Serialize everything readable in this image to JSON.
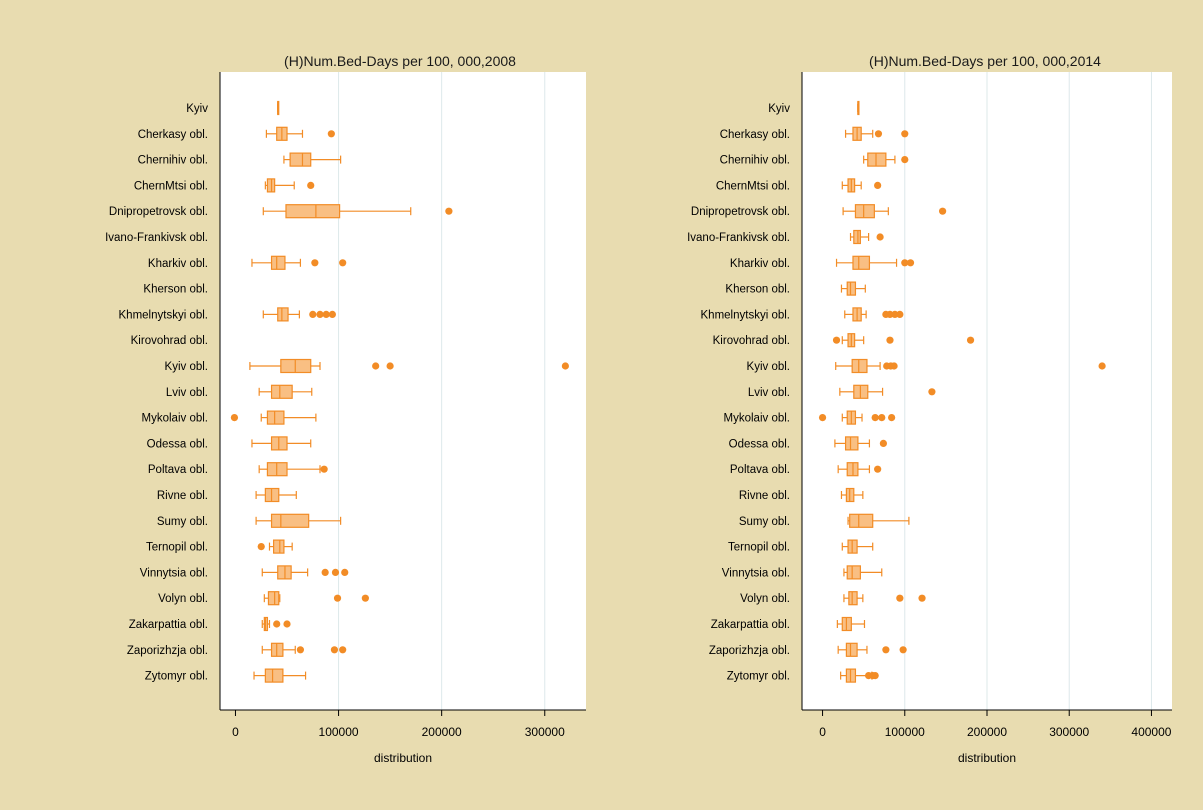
{
  "colors": {
    "background": "#e8dcb0",
    "plot_bg": "#ffffff",
    "box_fill": "#f9bf83",
    "box_stroke": "#f28c26",
    "grid": "#dde8ea"
  },
  "chart_data": [
    {
      "type": "boxplot",
      "title": "(H)Num.Bed-Days per 100, 000,2008",
      "xlabel": "distribution",
      "xlim": [
        -15000,
        340000
      ],
      "xticks": [
        0,
        100000,
        200000,
        300000
      ],
      "xtick_labels": [
        "0",
        "100000",
        "200000",
        "300000"
      ],
      "grid": "vertical",
      "categories": [
        "Kyiv",
        "Cherkasy obl.",
        "Chernihiv obl.",
        "ChernMtsi obl.",
        "Dnipropetrovsk obl.",
        "Ivano-Frankivsk obl.",
        "Kharkiv obl.",
        "Kherson obl.",
        "Khmelnytskyi obl.",
        "Kirovohrad obl.",
        "Kyiv obl.",
        "Lviv obl.",
        "Mykolaiv obl.",
        "Odessa obl.",
        "Poltava obl.",
        "Rivne obl.",
        "Sumy obl.",
        "Ternopil obl.",
        "Vinnytsia obl.",
        "Volyn obl.",
        "Zakarpattia obl.",
        "Zaporizhzja obl.",
        "Zytomyr obl."
      ],
      "boxes": [
        {
          "whisker_low": 41000,
          "q1": 41000,
          "median": 41000,
          "q3": 41000,
          "whisker_high": 41000,
          "outliers": []
        },
        {
          "whisker_low": 30000,
          "q1": 40000,
          "median": 45000,
          "q3": 50000,
          "whisker_high": 65000,
          "outliers": [
            93000
          ]
        },
        {
          "whisker_low": 47000,
          "q1": 53000,
          "median": 65000,
          "q3": 73000,
          "whisker_high": 102000,
          "outliers": []
        },
        {
          "whisker_low": 29000,
          "q1": 31000,
          "median": 35000,
          "q3": 38000,
          "whisker_high": 57000,
          "outliers": [
            73000
          ]
        },
        {
          "whisker_low": 27000,
          "q1": 49000,
          "median": 78000,
          "q3": 101000,
          "whisker_high": 170000,
          "outliers": [
            207000
          ]
        },
        null,
        {
          "whisker_low": 16000,
          "q1": 35000,
          "median": 40000,
          "q3": 48000,
          "whisker_high": 63000,
          "outliers": [
            77000,
            104000
          ]
        },
        null,
        {
          "whisker_low": 27000,
          "q1": 41000,
          "median": 45000,
          "q3": 51000,
          "whisker_high": 62000,
          "outliers": [
            75000,
            82000,
            88000,
            94000
          ]
        },
        null,
        {
          "whisker_low": 14000,
          "q1": 44000,
          "median": 58000,
          "q3": 73000,
          "whisker_high": 82000,
          "outliers": [
            136000,
            150000,
            320000
          ]
        },
        {
          "whisker_low": 23000,
          "q1": 35000,
          "median": 43000,
          "q3": 55000,
          "whisker_high": 74000,
          "outliers": []
        },
        {
          "whisker_low": 25000,
          "q1": 31000,
          "median": 38000,
          "q3": 47000,
          "whisker_high": 78000,
          "outliers": [
            -1000
          ]
        },
        {
          "whisker_low": 16000,
          "q1": 35000,
          "median": 42000,
          "q3": 50000,
          "whisker_high": 73000,
          "outliers": []
        },
        {
          "whisker_low": 23000,
          "q1": 31000,
          "median": 40000,
          "q3": 50000,
          "whisker_high": 82000,
          "outliers": [
            86000
          ]
        },
        {
          "whisker_low": 20000,
          "q1": 29000,
          "median": 35000,
          "q3": 42000,
          "whisker_high": 59000,
          "outliers": []
        },
        {
          "whisker_low": 20000,
          "q1": 35000,
          "median": 44000,
          "q3": 71000,
          "whisker_high": 102000,
          "outliers": []
        },
        {
          "whisker_low": 33000,
          "q1": 37000,
          "median": 43000,
          "q3": 47000,
          "whisker_high": 55000,
          "outliers": [
            25000
          ]
        },
        {
          "whisker_low": 26000,
          "q1": 41000,
          "median": 48000,
          "q3": 54000,
          "whisker_high": 70000,
          "outliers": [
            87000,
            97000,
            106000
          ]
        },
        {
          "whisker_low": 28000,
          "q1": 32000,
          "median": 38000,
          "q3": 42000,
          "whisker_high": 43000,
          "outliers": [
            99000,
            126000
          ]
        },
        {
          "whisker_low": 26000,
          "q1": 28000,
          "median": 29000,
          "q3": 31000,
          "whisker_high": 33000,
          "outliers": [
            40000,
            50000
          ]
        },
        {
          "whisker_low": 26000,
          "q1": 35000,
          "median": 40000,
          "q3": 46000,
          "whisker_high": 58000,
          "outliers": [
            63000,
            96000,
            104000
          ]
        },
        {
          "whisker_low": 18000,
          "q1": 29000,
          "median": 36000,
          "q3": 46000,
          "whisker_high": 68000,
          "outliers": []
        }
      ]
    },
    {
      "type": "boxplot",
      "title": "(H)Num.Bed-Days per 100, 000,2014",
      "xlabel": "distribution",
      "xlim": [
        -25000,
        425000
      ],
      "xticks": [
        0,
        100000,
        200000,
        300000,
        400000
      ],
      "xtick_labels": [
        "0",
        "100000",
        "200000",
        "300000",
        "400000"
      ],
      "grid": "vertical",
      "categories": [
        "Kyiv",
        "Cherkasy obl.",
        "Chernihiv obl.",
        "ChernMtsi obl.",
        "Dnipropetrovsk obl.",
        "Ivano-Frankivsk obl.",
        "Kharkiv obl.",
        "Kherson obl.",
        "Khmelnytskyi obl.",
        "Kirovohrad obl.",
        "Kyiv obl.",
        "Lviv obl.",
        "Mykolaiv obl.",
        "Odessa obl.",
        "Poltava obl.",
        "Rivne obl.",
        "Sumy obl.",
        "Ternopil obl.",
        "Vinnytsia obl.",
        "Volyn obl.",
        "Zakarpattia obl.",
        "Zaporizhzja obl.",
        "Zytomyr obl."
      ],
      "boxes": [
        {
          "whisker_low": 43000,
          "q1": 43000,
          "median": 43000,
          "q3": 43000,
          "whisker_high": 43000,
          "outliers": []
        },
        {
          "whisker_low": 28000,
          "q1": 37000,
          "median": 42000,
          "q3": 47000,
          "whisker_high": 61000,
          "outliers": [
            68000,
            100000
          ]
        },
        {
          "whisker_low": 50000,
          "q1": 55000,
          "median": 65000,
          "q3": 77000,
          "whisker_high": 88000,
          "outliers": [
            100000
          ]
        },
        {
          "whisker_low": 24000,
          "q1": 31000,
          "median": 35000,
          "q3": 39000,
          "whisker_high": 47000,
          "outliers": [
            67000
          ]
        },
        {
          "whisker_low": 25000,
          "q1": 40000,
          "median": 50000,
          "q3": 63000,
          "whisker_high": 80000,
          "outliers": [
            146000
          ]
        },
        {
          "whisker_low": 34000,
          "q1": 38000,
          "median": 43000,
          "q3": 46000,
          "whisker_high": 56000,
          "outliers": [
            70000
          ]
        },
        {
          "whisker_low": 17000,
          "q1": 37000,
          "median": 44000,
          "q3": 57000,
          "whisker_high": 90000,
          "outliers": [
            100000,
            107000
          ]
        },
        {
          "whisker_low": 23000,
          "q1": 30000,
          "median": 34000,
          "q3": 40000,
          "whisker_high": 52000,
          "outliers": []
        },
        {
          "whisker_low": 27000,
          "q1": 37000,
          "median": 42000,
          "q3": 47000,
          "whisker_high": 53000,
          "outliers": [
            77000,
            82000,
            88000,
            94000
          ]
        },
        {
          "whisker_low": 24000,
          "q1": 31000,
          "median": 35000,
          "q3": 39000,
          "whisker_high": 50000,
          "outliers": [
            17000,
            82000,
            180000
          ]
        },
        {
          "whisker_low": 16000,
          "q1": 36000,
          "median": 44000,
          "q3": 54000,
          "whisker_high": 70000,
          "outliers": [
            78000,
            83000,
            87000,
            340000
          ]
        },
        {
          "whisker_low": 21000,
          "q1": 38000,
          "median": 46000,
          "q3": 55000,
          "whisker_high": 73000,
          "outliers": [
            133000
          ]
        },
        {
          "whisker_low": 24000,
          "q1": 30000,
          "median": 35000,
          "q3": 40000,
          "whisker_high": 48000,
          "outliers": [
            0,
            64000,
            72000,
            84000
          ]
        },
        {
          "whisker_low": 15000,
          "q1": 28000,
          "median": 34000,
          "q3": 43000,
          "whisker_high": 57000,
          "outliers": [
            74000
          ]
        },
        {
          "whisker_low": 19000,
          "q1": 30000,
          "median": 37000,
          "q3": 43000,
          "whisker_high": 57000,
          "outliers": [
            67000
          ]
        },
        {
          "whisker_low": 23000,
          "q1": 29000,
          "median": 33000,
          "q3": 38000,
          "whisker_high": 49000,
          "outliers": []
        },
        {
          "whisker_low": 31000,
          "q1": 33000,
          "median": 44000,
          "q3": 61000,
          "whisker_high": 105000,
          "outliers": []
        },
        {
          "whisker_low": 24000,
          "q1": 31000,
          "median": 36000,
          "q3": 42000,
          "whisker_high": 61000,
          "outliers": []
        },
        {
          "whisker_low": 26000,
          "q1": 30000,
          "median": 36000,
          "q3": 46000,
          "whisker_high": 72000,
          "outliers": []
        },
        {
          "whisker_low": 26000,
          "q1": 32000,
          "median": 36000,
          "q3": 42000,
          "whisker_high": 49000,
          "outliers": [
            94000,
            121000
          ]
        },
        {
          "whisker_low": 18000,
          "q1": 24000,
          "median": 29000,
          "q3": 35000,
          "whisker_high": 51000,
          "outliers": []
        },
        {
          "whisker_low": 19000,
          "q1": 29000,
          "median": 34000,
          "q3": 42000,
          "whisker_high": 54000,
          "outliers": [
            77000,
            98000
          ]
        },
        {
          "whisker_low": 22000,
          "q1": 29000,
          "median": 34000,
          "q3": 40000,
          "whisker_high": 60000,
          "outliers": [
            56000,
            61000,
            64000
          ]
        }
      ]
    }
  ]
}
